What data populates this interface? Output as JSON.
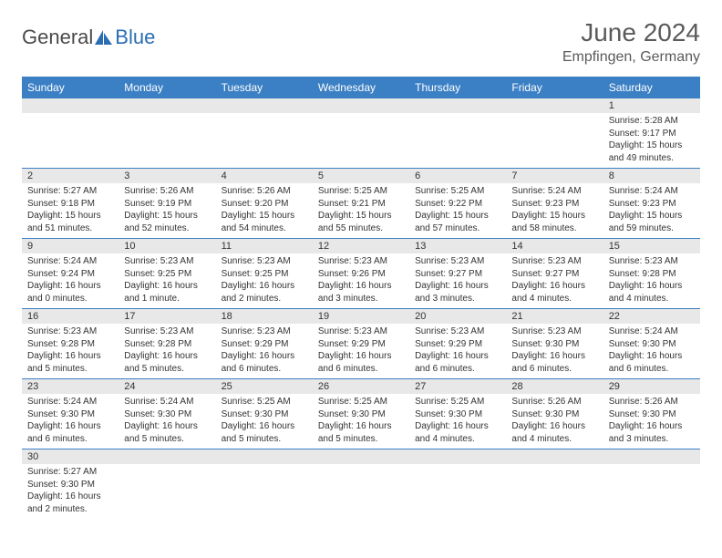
{
  "brand": {
    "part1": "General",
    "part2": "Blue"
  },
  "title": "June 2024",
  "location": "Empfingen, Germany",
  "colors": {
    "header_bg": "#3b7fc4",
    "header_text": "#ffffff",
    "daynum_bg": "#e8e8e8",
    "border": "#3b7fc4",
    "text": "#333333",
    "brand_gray": "#4a4a4a",
    "brand_blue": "#2b6db3"
  },
  "days": [
    "Sunday",
    "Monday",
    "Tuesday",
    "Wednesday",
    "Thursday",
    "Friday",
    "Saturday"
  ],
  "weeks": [
    [
      {
        "n": "",
        "lines": []
      },
      {
        "n": "",
        "lines": []
      },
      {
        "n": "",
        "lines": []
      },
      {
        "n": "",
        "lines": []
      },
      {
        "n": "",
        "lines": []
      },
      {
        "n": "",
        "lines": []
      },
      {
        "n": "1",
        "lines": [
          "Sunrise: 5:28 AM",
          "Sunset: 9:17 PM",
          "Daylight: 15 hours",
          "and 49 minutes."
        ]
      }
    ],
    [
      {
        "n": "2",
        "lines": [
          "Sunrise: 5:27 AM",
          "Sunset: 9:18 PM",
          "Daylight: 15 hours",
          "and 51 minutes."
        ]
      },
      {
        "n": "3",
        "lines": [
          "Sunrise: 5:26 AM",
          "Sunset: 9:19 PM",
          "Daylight: 15 hours",
          "and 52 minutes."
        ]
      },
      {
        "n": "4",
        "lines": [
          "Sunrise: 5:26 AM",
          "Sunset: 9:20 PM",
          "Daylight: 15 hours",
          "and 54 minutes."
        ]
      },
      {
        "n": "5",
        "lines": [
          "Sunrise: 5:25 AM",
          "Sunset: 9:21 PM",
          "Daylight: 15 hours",
          "and 55 minutes."
        ]
      },
      {
        "n": "6",
        "lines": [
          "Sunrise: 5:25 AM",
          "Sunset: 9:22 PM",
          "Daylight: 15 hours",
          "and 57 minutes."
        ]
      },
      {
        "n": "7",
        "lines": [
          "Sunrise: 5:24 AM",
          "Sunset: 9:23 PM",
          "Daylight: 15 hours",
          "and 58 minutes."
        ]
      },
      {
        "n": "8",
        "lines": [
          "Sunrise: 5:24 AM",
          "Sunset: 9:23 PM",
          "Daylight: 15 hours",
          "and 59 minutes."
        ]
      }
    ],
    [
      {
        "n": "9",
        "lines": [
          "Sunrise: 5:24 AM",
          "Sunset: 9:24 PM",
          "Daylight: 16 hours",
          "and 0 minutes."
        ]
      },
      {
        "n": "10",
        "lines": [
          "Sunrise: 5:23 AM",
          "Sunset: 9:25 PM",
          "Daylight: 16 hours",
          "and 1 minute."
        ]
      },
      {
        "n": "11",
        "lines": [
          "Sunrise: 5:23 AM",
          "Sunset: 9:25 PM",
          "Daylight: 16 hours",
          "and 2 minutes."
        ]
      },
      {
        "n": "12",
        "lines": [
          "Sunrise: 5:23 AM",
          "Sunset: 9:26 PM",
          "Daylight: 16 hours",
          "and 3 minutes."
        ]
      },
      {
        "n": "13",
        "lines": [
          "Sunrise: 5:23 AM",
          "Sunset: 9:27 PM",
          "Daylight: 16 hours",
          "and 3 minutes."
        ]
      },
      {
        "n": "14",
        "lines": [
          "Sunrise: 5:23 AM",
          "Sunset: 9:27 PM",
          "Daylight: 16 hours",
          "and 4 minutes."
        ]
      },
      {
        "n": "15",
        "lines": [
          "Sunrise: 5:23 AM",
          "Sunset: 9:28 PM",
          "Daylight: 16 hours",
          "and 4 minutes."
        ]
      }
    ],
    [
      {
        "n": "16",
        "lines": [
          "Sunrise: 5:23 AM",
          "Sunset: 9:28 PM",
          "Daylight: 16 hours",
          "and 5 minutes."
        ]
      },
      {
        "n": "17",
        "lines": [
          "Sunrise: 5:23 AM",
          "Sunset: 9:28 PM",
          "Daylight: 16 hours",
          "and 5 minutes."
        ]
      },
      {
        "n": "18",
        "lines": [
          "Sunrise: 5:23 AM",
          "Sunset: 9:29 PM",
          "Daylight: 16 hours",
          "and 6 minutes."
        ]
      },
      {
        "n": "19",
        "lines": [
          "Sunrise: 5:23 AM",
          "Sunset: 9:29 PM",
          "Daylight: 16 hours",
          "and 6 minutes."
        ]
      },
      {
        "n": "20",
        "lines": [
          "Sunrise: 5:23 AM",
          "Sunset: 9:29 PM",
          "Daylight: 16 hours",
          "and 6 minutes."
        ]
      },
      {
        "n": "21",
        "lines": [
          "Sunrise: 5:23 AM",
          "Sunset: 9:30 PM",
          "Daylight: 16 hours",
          "and 6 minutes."
        ]
      },
      {
        "n": "22",
        "lines": [
          "Sunrise: 5:24 AM",
          "Sunset: 9:30 PM",
          "Daylight: 16 hours",
          "and 6 minutes."
        ]
      }
    ],
    [
      {
        "n": "23",
        "lines": [
          "Sunrise: 5:24 AM",
          "Sunset: 9:30 PM",
          "Daylight: 16 hours",
          "and 6 minutes."
        ]
      },
      {
        "n": "24",
        "lines": [
          "Sunrise: 5:24 AM",
          "Sunset: 9:30 PM",
          "Daylight: 16 hours",
          "and 5 minutes."
        ]
      },
      {
        "n": "25",
        "lines": [
          "Sunrise: 5:25 AM",
          "Sunset: 9:30 PM",
          "Daylight: 16 hours",
          "and 5 minutes."
        ]
      },
      {
        "n": "26",
        "lines": [
          "Sunrise: 5:25 AM",
          "Sunset: 9:30 PM",
          "Daylight: 16 hours",
          "and 5 minutes."
        ]
      },
      {
        "n": "27",
        "lines": [
          "Sunrise: 5:25 AM",
          "Sunset: 9:30 PM",
          "Daylight: 16 hours",
          "and 4 minutes."
        ]
      },
      {
        "n": "28",
        "lines": [
          "Sunrise: 5:26 AM",
          "Sunset: 9:30 PM",
          "Daylight: 16 hours",
          "and 4 minutes."
        ]
      },
      {
        "n": "29",
        "lines": [
          "Sunrise: 5:26 AM",
          "Sunset: 9:30 PM",
          "Daylight: 16 hours",
          "and 3 minutes."
        ]
      }
    ],
    [
      {
        "n": "30",
        "lines": [
          "Sunrise: 5:27 AM",
          "Sunset: 9:30 PM",
          "Daylight: 16 hours",
          "and 2 minutes."
        ]
      },
      {
        "n": "",
        "lines": []
      },
      {
        "n": "",
        "lines": []
      },
      {
        "n": "",
        "lines": []
      },
      {
        "n": "",
        "lines": []
      },
      {
        "n": "",
        "lines": []
      },
      {
        "n": "",
        "lines": []
      }
    ]
  ]
}
